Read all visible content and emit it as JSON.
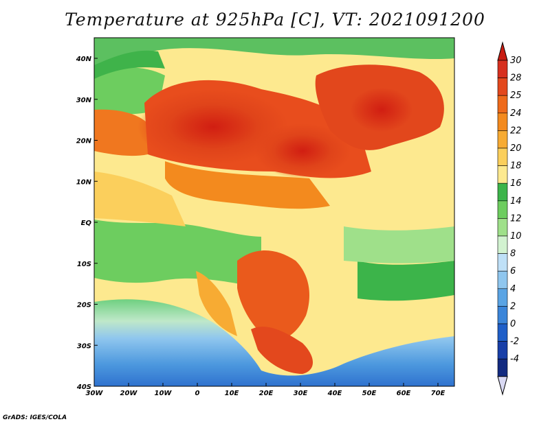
{
  "title": "Temperature at 925hPa [C], VT: 2021091200",
  "credit": "GrADS: IGES/COLA",
  "map": {
    "x_ticks": [
      "30W",
      "20W",
      "10W",
      "0",
      "10E",
      "20E",
      "30E",
      "40E",
      "50E",
      "60E",
      "70E"
    ],
    "y_ticks": [
      "40N",
      "30N",
      "20N",
      "10N",
      "EQ",
      "10S",
      "20S",
      "30S",
      "40S"
    ],
    "lon_range": [
      -30,
      75
    ],
    "lat_range": [
      -40,
      45
    ]
  },
  "colorbar": {
    "labels": [
      "30",
      "28",
      "25",
      "24",
      "22",
      "20",
      "18",
      "16",
      "14",
      "12",
      "10",
      "8",
      "6",
      "4",
      "2",
      "0",
      "-2",
      "-4"
    ],
    "colors": [
      "#d7301f",
      "#e3481d",
      "#ee6a1b",
      "#f38a1e",
      "#f7ab33",
      "#fbcf5c",
      "#fde98f",
      "#3cb44a",
      "#6dcd5f",
      "#9fe08a",
      "#d2f2d0",
      "#bfe0f7",
      "#8fc6ee",
      "#5aa4e4",
      "#3b85d9",
      "#1f5fc8",
      "#183fa8",
      "#122a80"
    ],
    "over_color": "#c81c12",
    "under_color": "#d9d9f3"
  }
}
